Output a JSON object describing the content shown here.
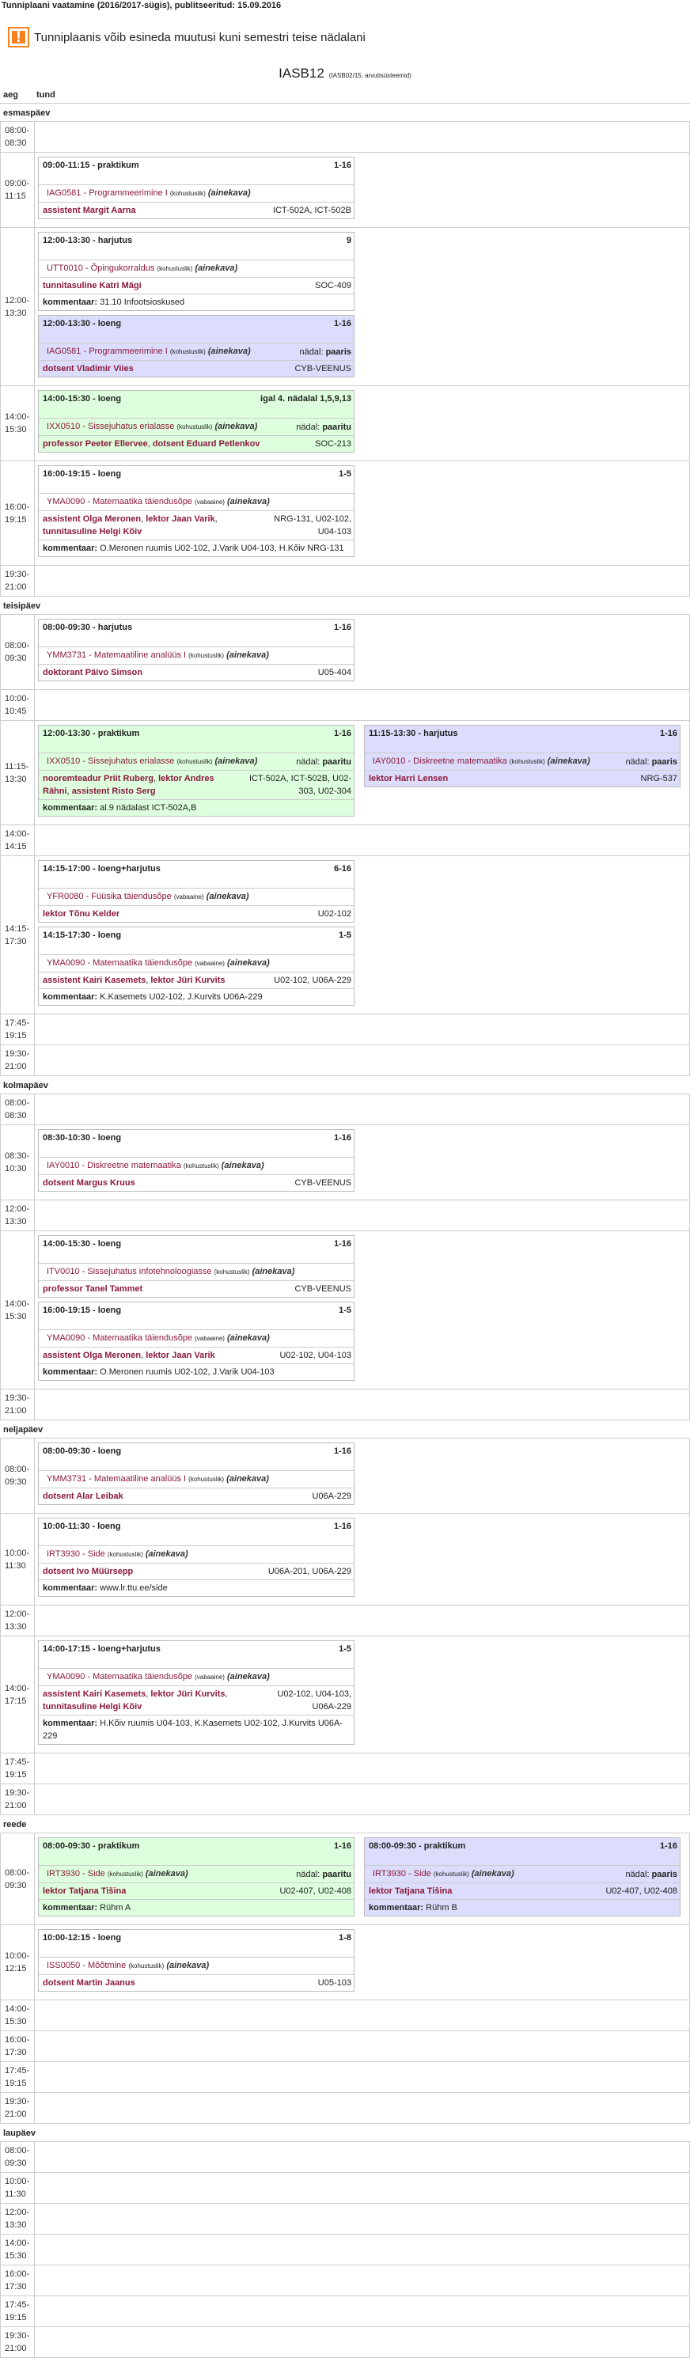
{
  "header": {
    "title": "Tunniplaani vaatamine (2016/2017-sügis), publitseeritud: 15.09.2016",
    "warning": "Tunniplaanis võib esineda muutusi kuni semestri teise nädalani",
    "warning_icon": "exclamation-icon",
    "group": "IASB12",
    "group_sub": "(IASB02/15, arvutisüsteemid)",
    "col_time": "aeg",
    "col_lesson": "tund"
  },
  "labels": {
    "comment": "kommentaar:",
    "week": "nädal:"
  },
  "colors": {
    "subject": "#8b1a3c",
    "green": "#ddffdd",
    "blue": "#dcdcfc",
    "warning": "#f5821f"
  },
  "days": [
    {
      "name": "esmaspäev",
      "rows": [
        {
          "time": [
            "08:00-",
            "08:30"
          ],
          "cols": []
        },
        {
          "time": [
            "09:00-",
            "11:15"
          ],
          "cols": [
            [
              {
                "time": "09:00-11:15 -",
                "type": "praktikum",
                "weeks": "1-16",
                "code": "IAG0581 - Programmeerimine I",
                "kind": "(kohustuslik)",
                "syllabus": "(ainekava)",
                "teachers": [
                  "assistent Margit Aarna"
                ],
                "rooms": "ICT-502A, ICT-502B"
              }
            ]
          ]
        },
        {
          "time": [
            "12:00-",
            "13:30"
          ],
          "cols": [
            [
              {
                "time": "12:00-13:30 -",
                "type": "harjutus",
                "weeks": "9",
                "code": "UTT0010 - Õpingukorraldus",
                "kind": "(kohustuslik)",
                "syllabus": "(ainekava)",
                "teachers": [
                  "tunnitasuline Katri Mägi"
                ],
                "rooms": "SOC-409",
                "comment": "31.10 Infootsioskused"
              },
              {
                "color": "blue",
                "time": "12:00-13:30 -",
                "type": "loeng",
                "weeks": "1-16",
                "code": "IAG0581 - Programmeerimine I",
                "kind": "(kohustuslik)",
                "syllabus": "(ainekava)",
                "parity": "paaris",
                "teachers": [
                  "dotsent Vladimir Viies"
                ],
                "rooms": "CYB-VEENUS"
              }
            ]
          ]
        },
        {
          "time": [
            "14:00-",
            "15:30"
          ],
          "cols": [
            [
              {
                "color": "green",
                "time": "14:00-15:30 -",
                "type": "loeng",
                "weeks": "igal 4. nädalal 1,5,9,13",
                "code": "IXX0510 - Sissejuhatus erialasse",
                "kind": "(kohustuslik)",
                "syllabus": "(ainekava)",
                "parity": "paaritu",
                "teachers": [
                  "professor Peeter Ellervee",
                  "dotsent Eduard Petlenkov"
                ],
                "rooms": "SOC-213"
              }
            ]
          ]
        },
        {
          "time": [
            "16:00-",
            "19:15"
          ],
          "cols": [
            [
              {
                "time": "16:00-19:15 -",
                "type": "loeng",
                "weeks": "1-5",
                "code": "YMA0090 - Matemaatika täiendusõpe",
                "kind": "(vabaaine)",
                "syllabus": "(ainekava)",
                "teachers": [
                  "assistent Olga Meronen",
                  "lektor Jaan Varik",
                  "tunnitasuline Helgi Kõiv"
                ],
                "rooms": "NRG-131, U02-102, U04-103",
                "comment": "O.Meronen ruumis U02-102, J.Varik U04-103, H.Kõiv NRG-131"
              }
            ]
          ]
        },
        {
          "time": [
            "19:30-",
            "21:00"
          ],
          "cols": []
        }
      ]
    },
    {
      "name": "teisipäev",
      "rows": [
        {
          "time": [
            "08:00-",
            "09:30"
          ],
          "cols": [
            [
              {
                "time": "08:00-09:30 -",
                "type": "harjutus",
                "weeks": "1-16",
                "code": "YMM3731 - Matemaatiline analüüs I",
                "kind": "(kohustuslik)",
                "syllabus": "(ainekava)",
                "teachers": [
                  "doktorant Päivo Simson"
                ],
                "rooms": "U05-404"
              }
            ]
          ]
        },
        {
          "time": [
            "10:00-",
            "10:45"
          ],
          "cols": []
        },
        {
          "time": [
            "11:15-",
            "13:30"
          ],
          "cols": [
            [
              {
                "color": "green",
                "time": "12:00-13:30 -",
                "type": "praktikum",
                "weeks": "1-16",
                "code": "IXX0510 - Sissejuhatus erialasse",
                "kind": "(kohustuslik)",
                "syllabus": "(ainekava)",
                "parity": "paaritu",
                "teachers": [
                  "nooremteadur Priit Ruberg",
                  "lektor Andres Rähni",
                  "assistent Risto Serg"
                ],
                "rooms": "ICT-502A, ICT-502B, U02-303, U02-304",
                "comment": "al.9 nädalast ICT-502A,B"
              }
            ],
            [
              {
                "color": "blue",
                "time": "11:15-13:30 -",
                "type": "harjutus",
                "weeks": "1-16",
                "code": "IAY0010 - Diskreetne matemaatika",
                "kind": "(kohustuslik)",
                "syllabus": "(ainekava)",
                "parity": "paaris",
                "teachers": [
                  "lektor Harri Lensen"
                ],
                "rooms": "NRG-537"
              }
            ]
          ]
        },
        {
          "time": [
            "14:00-",
            "14:15"
          ],
          "cols": []
        },
        {
          "time": [
            "14:15-",
            "17:30"
          ],
          "cols": [
            [
              {
                "time": "14:15-17:00 -",
                "type": "loeng+harjutus",
                "weeks": "6-16",
                "code": "YFR0080 - Füüsika täiendusõpe",
                "kind": "(vabaaine)",
                "syllabus": "(ainekava)",
                "teachers": [
                  "lektor Tõnu Kelder"
                ],
                "rooms": "U02-102"
              },
              {
                "time": "14:15-17:30 -",
                "type": "loeng",
                "weeks": "1-5",
                "code": "YMA0090 - Matemaatika täiendusõpe",
                "kind": "(vabaaine)",
                "syllabus": "(ainekava)",
                "teachers": [
                  "assistent Kairi Kasemets",
                  "lektor Jüri Kurvits"
                ],
                "rooms": "U02-102, U06A-229",
                "comment": "K.Kasemets U02-102, J.Kurvits U06A-229"
              }
            ]
          ]
        },
        {
          "time": [
            "17:45-",
            "19:15"
          ],
          "cols": []
        },
        {
          "time": [
            "19:30-",
            "21:00"
          ],
          "cols": []
        }
      ]
    },
    {
      "name": "kolmapäev",
      "rows": [
        {
          "time": [
            "08:00-",
            "08:30"
          ],
          "cols": []
        },
        {
          "time": [
            "08:30-",
            "10:30"
          ],
          "cols": [
            [
              {
                "time": "08:30-10:30 -",
                "type": "loeng",
                "weeks": "1-16",
                "code": "IAY0010 - Diskreetne matemaatika",
                "kind": "(kohustuslik)",
                "syllabus": "(ainekava)",
                "teachers": [
                  "dotsent Margus Kruus"
                ],
                "rooms": "CYB-VEENUS"
              }
            ]
          ]
        },
        {
          "time": [
            "12:00-",
            "13:30"
          ],
          "cols": []
        },
        {
          "time": [
            "14:00-",
            "15:30"
          ],
          "cols": [
            [
              {
                "time": "14:00-15:30 -",
                "type": "loeng",
                "weeks": "1-16",
                "code": "ITV0010 - Sissejuhatus infotehnoloogiasse",
                "kind": "(kohustuslik)",
                "syllabus": "(ainekava)",
                "teachers": [
                  "professor Tanel Tammet"
                ],
                "rooms": "CYB-VEENUS"
              },
              {
                "time": "16:00-19:15 -",
                "type": "loeng",
                "weeks": "1-5",
                "code": "YMA0090 - Matemaatika täiendusõpe",
                "kind": "(vabaaine)",
                "syllabus": "(ainekava)",
                "teachers": [
                  "assistent Olga Meronen",
                  "lektor Jaan Varik"
                ],
                "rooms": "U02-102, U04-103",
                "comment": "O.Meronen ruumis U02-102, J.Varik U04-103",
                "rowtime": true
              }
            ]
          ]
        },
        {
          "time": [
            "19:30-",
            "21:00"
          ],
          "cols": []
        }
      ]
    },
    {
      "name": "neljapäev",
      "rows": [
        {
          "time": [
            "08:00-",
            "09:30"
          ],
          "cols": [
            [
              {
                "time": "08:00-09:30 -",
                "type": "loeng",
                "weeks": "1-16",
                "code": "YMM3731 - Matemaatiline analüüs I",
                "kind": "(kohustuslik)",
                "syllabus": "(ainekava)",
                "teachers": [
                  "dotsent Alar Leibak"
                ],
                "rooms": "U06A-229"
              }
            ]
          ]
        },
        {
          "time": [
            "10:00-",
            "11:30"
          ],
          "cols": [
            [
              {
                "time": "10:00-11:30 -",
                "type": "loeng",
                "weeks": "1-16",
                "code": "IRT3930 - Side",
                "kind": "(kohustuslik)",
                "syllabus": "(ainekava)",
                "teachers": [
                  "dotsent Ivo Müürsepp"
                ],
                "rooms": "U06A-201, U06A-229",
                "comment": "www.lr.ttu.ee/side"
              }
            ]
          ]
        },
        {
          "time": [
            "12:00-",
            "13:30"
          ],
          "cols": []
        },
        {
          "time": [
            "14:00-",
            "17:15"
          ],
          "cols": [
            [
              {
                "time": "14:00-17:15 -",
                "type": "loeng+harjutus",
                "weeks": "1-5",
                "code": "YMA0090 - Matemaatika täiendusõpe",
                "kind": "(vabaaine)",
                "syllabus": "(ainekava)",
                "teachers": [
                  "assistent Kairi Kasemets",
                  "lektor Jüri Kurvits",
                  "tunnitasuline Helgi Kõiv"
                ],
                "rooms": "U02-102, U04-103, U06A-229",
                "comment": "H.Kõiv ruumis U04-103, K.Kasemets U02-102, J.Kurvits U06A-229"
              }
            ]
          ]
        },
        {
          "time": [
            "17:45-",
            "19:15"
          ],
          "cols": []
        },
        {
          "time": [
            "19:30-",
            "21:00"
          ],
          "cols": []
        }
      ]
    },
    {
      "name": "reede",
      "rows": [
        {
          "time": [
            "08:00-",
            "09:30"
          ],
          "cols": [
            [
              {
                "color": "green",
                "time": "08:00-09:30 -",
                "type": "praktikum",
                "weeks": "1-16",
                "code": "IRT3930 - Side",
                "kind": "(kohustuslik)",
                "syllabus": "(ainekava)",
                "parity": "paaritu",
                "teachers": [
                  "lektor Tatjana Tišina"
                ],
                "rooms": "U02-407, U02-408",
                "comment": "Rühm A"
              }
            ],
            [
              {
                "color": "blue",
                "time": "08:00-09:30 -",
                "type": "praktikum",
                "weeks": "1-16",
                "code": "IRT3930 - Side",
                "kind": "(kohustuslik)",
                "syllabus": "(ainekava)",
                "parity": "paaris",
                "teachers": [
                  "lektor Tatjana Tišina"
                ],
                "rooms": "U02-407, U02-408",
                "comment": "Rühm B"
              }
            ]
          ]
        },
        {
          "time": [
            "10:00-",
            "12:15"
          ],
          "cols": [
            [
              {
                "time": "10:00-12:15 -",
                "type": "loeng",
                "weeks": "1-8",
                "code": "ISS0050 - Mõõtmine",
                "kind": "(kohustuslik)",
                "syllabus": "(ainekava)",
                "teachers": [
                  "dotsent Martin Jaanus"
                ],
                "rooms": "U05-103"
              }
            ]
          ]
        },
        {
          "time": [
            "14:00-",
            "15:30"
          ],
          "cols": []
        },
        {
          "time": [
            "16:00-",
            "17:30"
          ],
          "cols": []
        },
        {
          "time": [
            "17:45-",
            "19:15"
          ],
          "cols": []
        },
        {
          "time": [
            "19:30-",
            "21:00"
          ],
          "cols": []
        }
      ]
    },
    {
      "name": "laupäev",
      "rows": [
        {
          "time": [
            "08:00-",
            "09:30"
          ],
          "cols": []
        },
        {
          "time": [
            "10:00-",
            "11:30"
          ],
          "cols": []
        },
        {
          "time": [
            "12:00-",
            "13:30"
          ],
          "cols": []
        },
        {
          "time": [
            "14:00-",
            "15:30"
          ],
          "cols": []
        },
        {
          "time": [
            "16:00-",
            "17:30"
          ],
          "cols": []
        },
        {
          "time": [
            "17:45-",
            "19:15"
          ],
          "cols": []
        },
        {
          "time": [
            "19:30-",
            "21:00"
          ],
          "cols": []
        }
      ]
    }
  ]
}
